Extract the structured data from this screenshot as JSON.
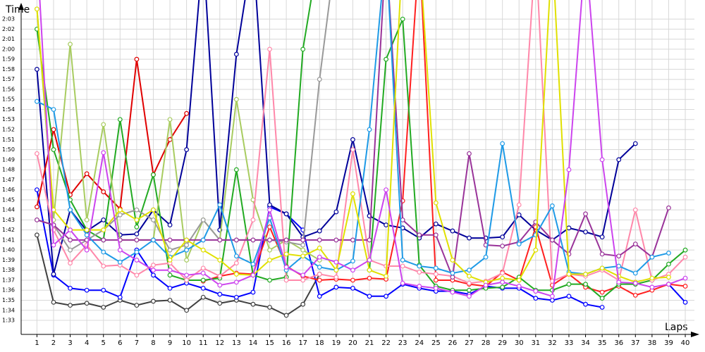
{
  "chart_data": {
    "type": "line",
    "x_label": "Laps",
    "y_label": "Time",
    "x": [
      1,
      2,
      3,
      4,
      5,
      6,
      7,
      8,
      9,
      10,
      11,
      12,
      13,
      14,
      15,
      16,
      17,
      18,
      19,
      20,
      21,
      22,
      23,
      24,
      25,
      26,
      27,
      28,
      29,
      30,
      31,
      32,
      33,
      34,
      35,
      36,
      37,
      38,
      39,
      40
    ],
    "xlim": [
      0.05,
      40.55
    ],
    "ylim": [
      91.6,
      124.9
    ],
    "grid": true,
    "yticks": [
      {
        "value": 93,
        "label": "1:33"
      },
      {
        "value": 94,
        "label": "1:34"
      },
      {
        "value": 95,
        "label": "1:35"
      },
      {
        "value": 96,
        "label": "1:36"
      },
      {
        "value": 97,
        "label": "1:37"
      },
      {
        "value": 98,
        "label": "1:38"
      },
      {
        "value": 99,
        "label": "1:39"
      },
      {
        "value": 100,
        "label": "1:40"
      },
      {
        "value": 101,
        "label": "1:41"
      },
      {
        "value": 102,
        "label": "1:42"
      },
      {
        "value": 103,
        "label": "1:43"
      },
      {
        "value": 104,
        "label": "1:44"
      },
      {
        "value": 105,
        "label": "1:45"
      },
      {
        "value": 106,
        "label": "1:46"
      },
      {
        "value": 107,
        "label": "1:47"
      },
      {
        "value": 108,
        "label": "1:48"
      },
      {
        "value": 109,
        "label": "1:49"
      },
      {
        "value": 110,
        "label": "1:50"
      },
      {
        "value": 111,
        "label": "1:51"
      },
      {
        "value": 112,
        "label": "1:52"
      },
      {
        "value": 113,
        "label": "1:53"
      },
      {
        "value": 114,
        "label": "1:54"
      },
      {
        "value": 115,
        "label": "1:55"
      },
      {
        "value": 116,
        "label": "1:56"
      },
      {
        "value": 117,
        "label": "1:57"
      },
      {
        "value": 118,
        "label": "1:58"
      },
      {
        "value": 119,
        "label": "1:59"
      },
      {
        "value": 120,
        "label": "2:00"
      },
      {
        "value": 121,
        "label": "2:01"
      },
      {
        "value": 122,
        "label": "2:02"
      },
      {
        "value": 123,
        "label": "2:03"
      }
    ],
    "series": [
      {
        "color": "#404040",
        "values": [
          101.5,
          94.8,
          94.5,
          94.7,
          94.3,
          95,
          94.5,
          94.9,
          95,
          94,
          95.3,
          94.7,
          95,
          94.6,
          94.3,
          93.5,
          94.6,
          97.6,
          null,
          null,
          null,
          null,
          null,
          null,
          null,
          null,
          null,
          null,
          null,
          null,
          null,
          null,
          null,
          null,
          null,
          null,
          null,
          null,
          null,
          null
        ]
      },
      {
        "color": "#0000ff",
        "values": [
          106,
          97.5,
          96.2,
          96,
          96,
          95.3,
          100,
          97.5,
          96.2,
          96.7,
          96.2,
          95.6,
          95.3,
          95.8,
          104.3,
          103.6,
          102,
          95.4,
          96.3,
          96.2,
          95.4,
          95.4,
          96.6,
          96.2,
          95.9,
          95.9,
          95.6,
          96.4,
          96.2,
          96.2,
          95.2,
          95,
          95.4,
          94.6,
          94.3,
          null,
          null,
          null,
          96.6,
          94.8
        ]
      },
      {
        "color": "#000099",
        "values": [
          118,
          97.6,
          104,
          101.9,
          103,
          101.5,
          101.6,
          104,
          102.5,
          110,
          130,
          102,
          119.5,
          130,
          104.5,
          103.6,
          101.3,
          101.9,
          103.8,
          111,
          103.4,
          102.5,
          102.2,
          101.2,
          102.6,
          101.9,
          101.2,
          101.2,
          101.3,
          103.5,
          102,
          101,
          102.2,
          101.8,
          101.3,
          109,
          110.6,
          null,
          null,
          null
        ]
      },
      {
        "color": "#e00000",
        "values": [
          104.3,
          112,
          105.5,
          107.6,
          105.8,
          104.1,
          119,
          107.5,
          111,
          113.6,
          null,
          null,
          null,
          null,
          null,
          null,
          null,
          null,
          null,
          null,
          null,
          null,
          null,
          null,
          null,
          null,
          null,
          null,
          null,
          null,
          null,
          null,
          null,
          null,
          null,
          null,
          null,
          null,
          null,
          null
        ]
      },
      {
        "color": "#ff2020",
        "values": [
          null,
          null,
          null,
          null,
          null,
          null,
          null,
          null,
          null,
          null,
          96.9,
          97.4,
          97.7,
          97.6,
          102.3,
          98.4,
          97.4,
          97,
          97.1,
          97,
          97.2,
          97.1,
          104.9,
          130,
          97,
          97,
          96.6,
          96.4,
          97.8,
          97,
          102.3,
          96.5,
          97.6,
          96.3,
          95.8,
          96.4,
          95.5,
          96,
          96.6,
          96.4
        ]
      },
      {
        "color": "#22aa22",
        "values": [
          122,
          110,
          105,
          102,
          101,
          113,
          102.3,
          107.5,
          97.5,
          97,
          97,
          97.2,
          108,
          97.5,
          97,
          97.3,
          120,
          130,
          null,
          null,
          98,
          119,
          123,
          98.5,
          96.4,
          96,
          96,
          96.2,
          96.3,
          97.3,
          96,
          96,
          96.6,
          96.6,
          95.2,
          96.6,
          96.6,
          97,
          98.6,
          100
        ]
      },
      {
        "color": "#a8cc60",
        "values": [
          124,
          103,
          120.5,
          103,
          112.5,
          101,
          101,
          101,
          113,
          99,
          103,
          101,
          115,
          105,
          100,
          101,
          100,
          99,
          null,
          null,
          null,
          null,
          null,
          null,
          null,
          null,
          null,
          null,
          null,
          null,
          null,
          null,
          null,
          null,
          null,
          null,
          null,
          null,
          null,
          null
        ]
      },
      {
        "color": "#999999",
        "values": [
          103,
          102.5,
          100,
          101,
          102,
          103.5,
          104,
          103,
          100,
          100.5,
          103,
          101,
          101,
          101,
          101,
          100.8,
          100.5,
          117,
          130,
          null,
          null,
          null,
          null,
          null,
          null,
          null,
          null,
          null,
          null,
          null,
          null,
          null,
          null,
          null,
          null,
          null,
          null,
          null,
          null,
          null
        ]
      },
      {
        "color": "#ff88aa",
        "values": [
          109.6,
          102,
          98.7,
          100.5,
          98.4,
          98.5,
          97.5,
          98.5,
          98.7,
          97,
          98.2,
          97.4,
          98.7,
          103,
          120,
          97,
          97,
          97.6,
          97.3,
          110,
          99,
          98.4,
          98.4,
          97.8,
          97.6,
          97.4,
          96.7,
          96.9,
          97.7,
          104.5,
          130,
          96.9,
          97.6,
          97.4,
          98,
          97,
          104,
          97,
          97.6,
          99.3
        ]
      },
      {
        "color": "#993399",
        "values": [
          103,
          102.5,
          101,
          101,
          101,
          101,
          101,
          101,
          101,
          101,
          101,
          101,
          101,
          101,
          101,
          101,
          101,
          101,
          101,
          101,
          101,
          130,
          103,
          101.5,
          101.5,
          97.3,
          109.6,
          100.5,
          100.4,
          100.8,
          102.8,
          101,
          99.6,
          103.6,
          99.6,
          99.4,
          100.6,
          99.3,
          104.2,
          null
        ]
      },
      {
        "color": "#1e9ae6",
        "values": [
          114.8,
          114,
          104,
          101.5,
          99.8,
          98.8,
          99.8,
          101,
          99.3,
          100,
          101,
          104.5,
          99.4,
          98.6,
          103.2,
          98,
          99.4,
          98.3,
          98,
          98.9,
          112,
          130,
          99,
          98.4,
          98.2,
          97.7,
          98,
          99.3,
          110.6,
          100.6,
          101.5,
          104.4,
          97.8,
          97.6,
          98.2,
          98.4,
          97.7,
          99.3,
          99.7,
          null
        ]
      },
      {
        "color": "#e0e000",
        "values": [
          124,
          104,
          102,
          102,
          102,
          104,
          103,
          104,
          99,
          101,
          100,
          99,
          97.6,
          97.5,
          99,
          99.6,
          99.4,
          100.2,
          98,
          105.6,
          98,
          97.4,
          130,
          130,
          104.7,
          99,
          97.4,
          96.8,
          97.2,
          97,
          100,
          130,
          97.6,
          97.6,
          98.2,
          97.4,
          96.8,
          97.2,
          97.3,
          null
        ]
      },
      {
        "color": "#cc44ee",
        "values": [
          130,
          100.5,
          102,
          100,
          109.7,
          100,
          99,
          98,
          98,
          97.5,
          97.7,
          96.5,
          96.8,
          97.5,
          104,
          98.3,
          97.5,
          99.3,
          98.8,
          98,
          99,
          106,
          96.7,
          96.4,
          96.2,
          95.8,
          95.4,
          96.5,
          96.8,
          96.4,
          95.9,
          95.4,
          108,
          130,
          109,
          96.8,
          96.7,
          96.3,
          96.6,
          97.2
        ]
      }
    ]
  }
}
